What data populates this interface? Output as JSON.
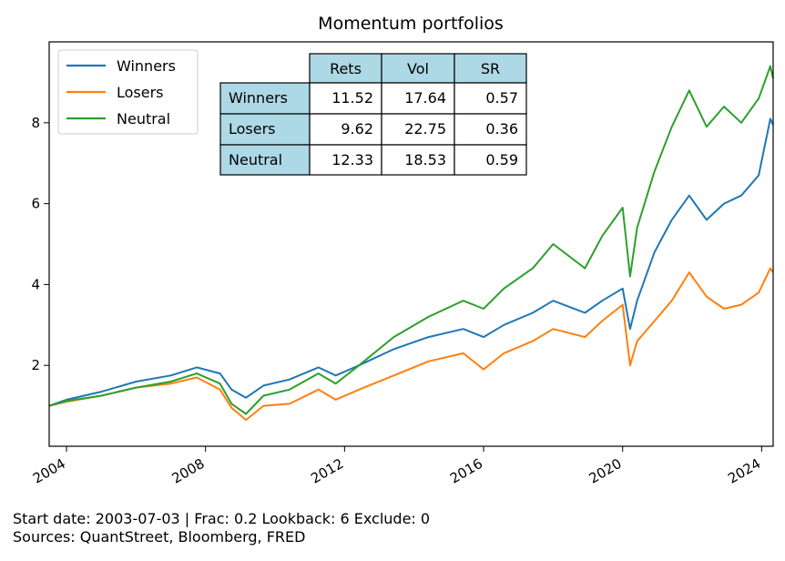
{
  "chart_data": {
    "type": "line",
    "title": "Momentum portfolios",
    "xlabel": "",
    "ylabel": "",
    "x_range": [
      "2003-07-03",
      "2024-05-01"
    ],
    "ylim": [
      0,
      10
    ],
    "x_tick_labels": [
      "2004",
      "2008",
      "2012",
      "2016",
      "2020",
      "2024"
    ],
    "y_tick_labels": [
      "2",
      "4",
      "6",
      "8"
    ],
    "grid": false,
    "legend_position": "upper-left",
    "series": [
      {
        "name": "Winners",
        "color": "#1f77b4",
        "points": [
          [
            "2003-07-03",
            1.0
          ],
          [
            "2004-01-01",
            1.15
          ],
          [
            "2005-01-01",
            1.35
          ],
          [
            "2006-01-01",
            1.6
          ],
          [
            "2007-01-01",
            1.75
          ],
          [
            "2007-10-01",
            1.95
          ],
          [
            "2008-06-01",
            1.8
          ],
          [
            "2008-10-01",
            1.4
          ],
          [
            "2009-03-01",
            1.2
          ],
          [
            "2009-09-01",
            1.5
          ],
          [
            "2010-06-01",
            1.65
          ],
          [
            "2011-04-01",
            1.95
          ],
          [
            "2011-10-01",
            1.75
          ],
          [
            "2012-06-01",
            2.0
          ],
          [
            "2013-06-01",
            2.4
          ],
          [
            "2014-06-01",
            2.7
          ],
          [
            "2015-06-01",
            2.9
          ],
          [
            "2016-01-01",
            2.7
          ],
          [
            "2016-08-01",
            3.0
          ],
          [
            "2017-06-01",
            3.3
          ],
          [
            "2018-01-01",
            3.6
          ],
          [
            "2018-12-01",
            3.3
          ],
          [
            "2019-06-01",
            3.6
          ],
          [
            "2020-01-01",
            3.9
          ],
          [
            "2020-03-20",
            2.9
          ],
          [
            "2020-06-01",
            3.6
          ],
          [
            "2020-12-01",
            4.8
          ],
          [
            "2021-06-01",
            5.6
          ],
          [
            "2021-12-01",
            6.2
          ],
          [
            "2022-06-01",
            5.6
          ],
          [
            "2022-12-01",
            6.0
          ],
          [
            "2023-06-01",
            6.2
          ],
          [
            "2023-12-01",
            6.7
          ],
          [
            "2024-04-01",
            8.1
          ],
          [
            "2024-04-30",
            7.95
          ]
        ]
      },
      {
        "name": "Losers",
        "color": "#ff7f0e",
        "points": [
          [
            "2003-07-03",
            1.0
          ],
          [
            "2004-01-01",
            1.1
          ],
          [
            "2005-01-01",
            1.25
          ],
          [
            "2006-01-01",
            1.45
          ],
          [
            "2007-01-01",
            1.55
          ],
          [
            "2007-10-01",
            1.7
          ],
          [
            "2008-06-01",
            1.4
          ],
          [
            "2008-10-01",
            0.95
          ],
          [
            "2009-03-01",
            0.65
          ],
          [
            "2009-09-01",
            1.0
          ],
          [
            "2010-06-01",
            1.05
          ],
          [
            "2011-04-01",
            1.4
          ],
          [
            "2011-10-01",
            1.15
          ],
          [
            "2012-06-01",
            1.4
          ],
          [
            "2013-06-01",
            1.75
          ],
          [
            "2014-06-01",
            2.1
          ],
          [
            "2015-06-01",
            2.3
          ],
          [
            "2016-01-01",
            1.9
          ],
          [
            "2016-08-01",
            2.3
          ],
          [
            "2017-06-01",
            2.6
          ],
          [
            "2018-01-01",
            2.9
          ],
          [
            "2018-12-01",
            2.7
          ],
          [
            "2019-06-01",
            3.1
          ],
          [
            "2020-01-01",
            3.5
          ],
          [
            "2020-03-20",
            2.0
          ],
          [
            "2020-06-01",
            2.6
          ],
          [
            "2020-12-01",
            3.1
          ],
          [
            "2021-06-01",
            3.6
          ],
          [
            "2021-12-01",
            4.3
          ],
          [
            "2022-06-01",
            3.7
          ],
          [
            "2022-12-01",
            3.4
          ],
          [
            "2023-06-01",
            3.5
          ],
          [
            "2023-12-01",
            3.8
          ],
          [
            "2024-04-01",
            4.4
          ],
          [
            "2024-04-30",
            4.3
          ]
        ]
      },
      {
        "name": "Neutral",
        "color": "#2ca02c",
        "points": [
          [
            "2003-07-03",
            1.0
          ],
          [
            "2004-01-01",
            1.12
          ],
          [
            "2005-01-01",
            1.25
          ],
          [
            "2006-01-01",
            1.45
          ],
          [
            "2007-01-01",
            1.6
          ],
          [
            "2007-10-01",
            1.8
          ],
          [
            "2008-06-01",
            1.55
          ],
          [
            "2008-10-01",
            1.05
          ],
          [
            "2009-03-01",
            0.8
          ],
          [
            "2009-09-01",
            1.25
          ],
          [
            "2010-06-01",
            1.4
          ],
          [
            "2011-04-01",
            1.8
          ],
          [
            "2011-10-01",
            1.55
          ],
          [
            "2012-06-01",
            2.0
          ],
          [
            "2013-06-01",
            2.7
          ],
          [
            "2014-06-01",
            3.2
          ],
          [
            "2015-06-01",
            3.6
          ],
          [
            "2016-01-01",
            3.4
          ],
          [
            "2016-08-01",
            3.9
          ],
          [
            "2017-06-01",
            4.4
          ],
          [
            "2018-01-01",
            5.0
          ],
          [
            "2018-12-01",
            4.4
          ],
          [
            "2019-06-01",
            5.2
          ],
          [
            "2020-01-01",
            5.9
          ],
          [
            "2020-03-20",
            4.2
          ],
          [
            "2020-06-01",
            5.4
          ],
          [
            "2020-12-01",
            6.8
          ],
          [
            "2021-06-01",
            7.9
          ],
          [
            "2021-12-01",
            8.8
          ],
          [
            "2022-06-01",
            7.9
          ],
          [
            "2022-12-01",
            8.4
          ],
          [
            "2023-06-01",
            8.0
          ],
          [
            "2023-12-01",
            8.6
          ],
          [
            "2024-04-01",
            9.4
          ],
          [
            "2024-04-30",
            9.1
          ]
        ]
      }
    ],
    "table": {
      "columns": [
        "Rets",
        "Vol",
        "SR"
      ],
      "rows": [
        {
          "label": "Winners",
          "values": [
            "11.52",
            "17.64",
            "0.57"
          ]
        },
        {
          "label": "Losers",
          "values": [
            "9.62",
            "22.75",
            "0.36"
          ]
        },
        {
          "label": "Neutral",
          "values": [
            "12.33",
            "18.53",
            "0.59"
          ]
        }
      ],
      "header_color": "#add8e6"
    }
  },
  "footnote": {
    "line1": "Start date: 2003-07-03  |  Frac: 0.2  Lookback: 6  Exclude: 0",
    "line2": "Sources: QuantStreet, Bloomberg, FRED"
  }
}
